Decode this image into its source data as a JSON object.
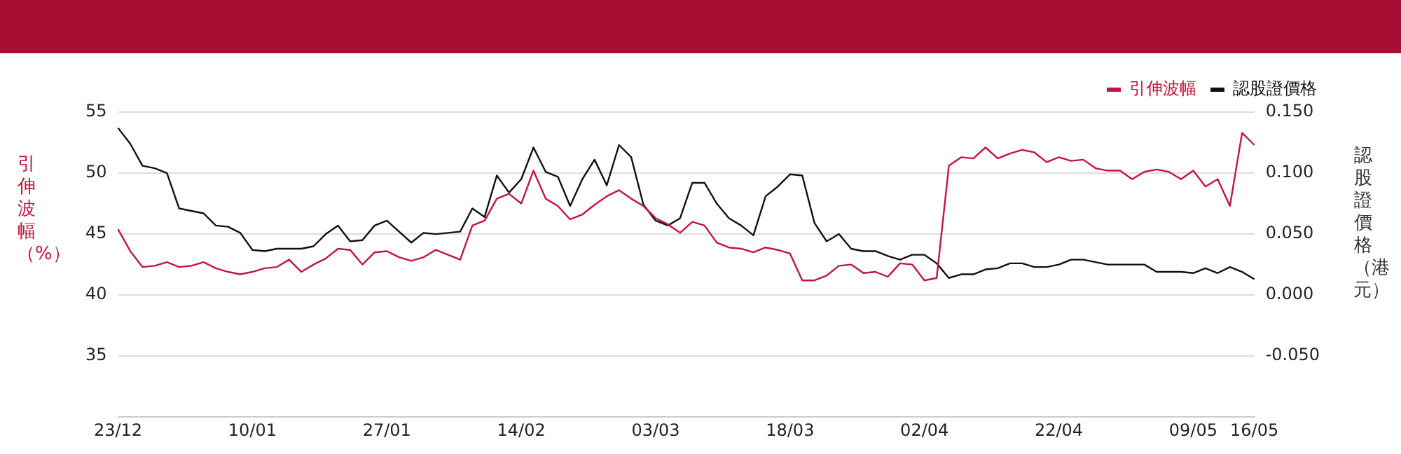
{
  "chart_data": {
    "type": "line",
    "ylabel": "引伸波幅（%）",
    "y2label": "認股證價格（港元）",
    "categories": [
      "23/12",
      null,
      null,
      null,
      null,
      null,
      null,
      null,
      null,
      null,
      null,
      "10/01",
      null,
      null,
      null,
      null,
      null,
      null,
      null,
      null,
      null,
      null,
      "27/01",
      null,
      null,
      null,
      null,
      null,
      null,
      null,
      null,
      null,
      null,
      "14/02",
      null,
      null,
      null,
      null,
      null,
      null,
      null,
      null,
      null,
      null,
      "03/03",
      null,
      null,
      null,
      null,
      null,
      null,
      null,
      null,
      null,
      null,
      "18/03",
      null,
      null,
      null,
      null,
      null,
      null,
      null,
      null,
      null,
      null,
      "02/04",
      null,
      null,
      null,
      null,
      null,
      null,
      null,
      null,
      null,
      null,
      "22/04",
      null,
      null,
      null,
      null,
      null,
      null,
      null,
      null,
      null,
      null,
      "09/05",
      null,
      null,
      null,
      null,
      "16/05"
    ],
    "series": [
      {
        "name": "引伸波幅",
        "color": "#c0163f",
        "values": [
          45.4,
          43.6,
          42.3,
          42.4,
          42.7,
          42.3,
          42.4,
          42.7,
          42.2,
          41.9,
          41.7,
          41.9,
          42.2,
          42.3,
          42.9,
          41.9,
          42.5,
          43.0,
          43.8,
          43.7,
          42.5,
          43.5,
          43.6,
          43.1,
          42.8,
          43.1,
          43.7,
          43.3,
          42.9,
          45.7,
          46.1,
          47.9,
          48.3,
          47.5,
          50.2,
          47.9,
          47.3,
          46.2,
          46.6,
          47.4,
          48.1,
          48.6,
          47.9,
          47.3,
          46.3,
          45.8,
          45.1,
          46.0,
          45.7,
          44.3,
          43.9,
          43.8,
          43.5,
          43.9,
          43.7,
          43.4,
          41.2,
          41.2,
          41.6,
          42.4,
          42.5,
          41.8,
          41.9,
          41.5,
          42.6,
          42.5,
          41.2,
          41.4,
          50.6,
          51.3,
          51.2,
          52.1,
          51.2,
          51.6,
          51.9,
          51.7,
          50.9,
          51.3,
          51.0,
          51.1,
          50.4,
          50.2,
          50.2,
          49.5,
          50.1,
          50.3,
          50.1,
          49.5,
          50.2,
          48.9,
          49.5,
          47.3,
          53.3,
          52.3
        ]
      },
      {
        "name": "認股證價格",
        "color": "#111111",
        "axis": "y2",
        "values": [
          0.137,
          0.124,
          0.106,
          0.104,
          0.1,
          0.071,
          0.069,
          0.067,
          0.057,
          0.056,
          0.051,
          0.037,
          0.036,
          0.038,
          0.038,
          0.038,
          0.04,
          0.05,
          0.057,
          0.044,
          0.045,
          0.057,
          0.061,
          0.052,
          0.043,
          0.051,
          0.05,
          0.051,
          0.052,
          0.071,
          0.064,
          0.098,
          0.084,
          0.095,
          0.121,
          0.101,
          0.097,
          0.073,
          0.095,
          0.111,
          0.09,
          0.123,
          0.113,
          0.074,
          0.061,
          0.057,
          0.063,
          0.092,
          0.092,
          0.075,
          0.063,
          0.057,
          0.049,
          0.081,
          0.089,
          0.099,
          0.098,
          0.059,
          0.044,
          0.05,
          0.038,
          0.036,
          0.036,
          0.032,
          0.029,
          0.033,
          0.033,
          0.026,
          0.014,
          0.017,
          0.017,
          0.021,
          0.022,
          0.026,
          0.026,
          0.023,
          0.023,
          0.025,
          0.029,
          0.029,
          0.027,
          0.025,
          0.025,
          0.025,
          0.025,
          0.019,
          0.019,
          0.019,
          0.018,
          0.022,
          0.018,
          0.023,
          0.019,
          0.013
        ]
      }
    ],
    "ylim": [
      30,
      55
    ],
    "yticks": [
      35,
      40,
      45,
      50,
      55
    ],
    "y2lim": [
      -0.1,
      0.15
    ],
    "y2ticks": [
      {
        "value": -0.05,
        "label": "-0.050"
      },
      {
        "value": 0,
        "label": "0.000"
      },
      {
        "value": 0.05,
        "label": "0.050"
      },
      {
        "value": 0.1,
        "label": "0.100"
      },
      {
        "value": 0.15,
        "label": "0.150"
      }
    ],
    "grid": "y",
    "legend": "top right"
  }
}
